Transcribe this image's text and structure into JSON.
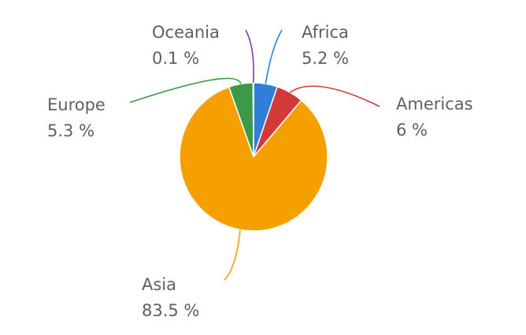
{
  "chart_data": {
    "type": "pie",
    "categories": [
      "Africa",
      "Americas",
      "Asia",
      "Europe",
      "Oceania"
    ],
    "values": [
      5.2,
      6,
      83.5,
      5.3,
      0.1
    ],
    "value_labels": [
      "5.2 %",
      "6 %",
      "83.5 %",
      "5.3 %",
      "0.1 %"
    ],
    "colors": [
      "#2f7fd6",
      "#d23a3a",
      "#f6a000",
      "#3b9a48",
      "#7a3fa2"
    ]
  }
}
